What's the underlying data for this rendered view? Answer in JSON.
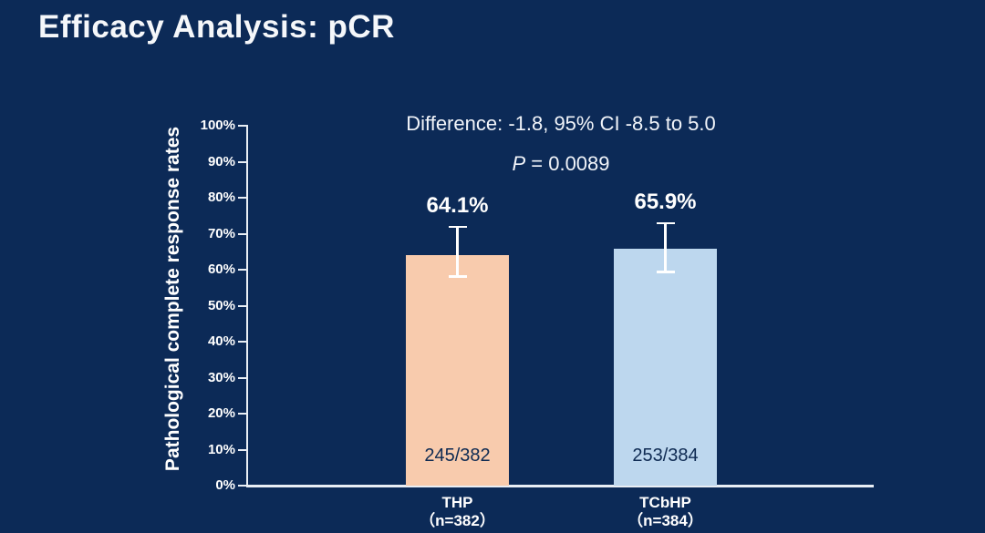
{
  "slide": {
    "title": "Efficacy Analysis: pCR"
  },
  "annotations": {
    "difference": "Difference: -1.8, 95% CI -8.5 to 5.0",
    "p_italic": "P",
    "p_rest": " = 0.0089"
  },
  "colors": {
    "background": "#0c2a57",
    "text": "#ffffff",
    "axis": "#e9eef5",
    "inner_label_text": "#0e2a52"
  },
  "chart_data": {
    "type": "bar",
    "title": "",
    "xlabel": "",
    "ylabel": "Pathological complete response rates",
    "ylim": [
      0,
      100
    ],
    "ytick_step": 10,
    "ytick_labels": [
      "0%",
      "10%",
      "20%",
      "30%",
      "40%",
      "50%",
      "60%",
      "70%",
      "80%",
      "90%",
      "100%"
    ],
    "grid": false,
    "legend": null,
    "categories": [
      "THP",
      "TCbHP"
    ],
    "category_sublabels": [
      "（n=382）",
      "（n=384）"
    ],
    "values": [
      64.1,
      65.9
    ],
    "value_labels": [
      "64.1%",
      "65.9%"
    ],
    "bar_inner_labels": [
      "245/382",
      "253/384"
    ],
    "bar_colors": [
      "#f8cbad",
      "#bdd7ee"
    ],
    "error_bars": [
      {
        "low": 57.8,
        "high": 72.2
      },
      {
        "low": 59.1,
        "high": 73.2
      }
    ]
  }
}
